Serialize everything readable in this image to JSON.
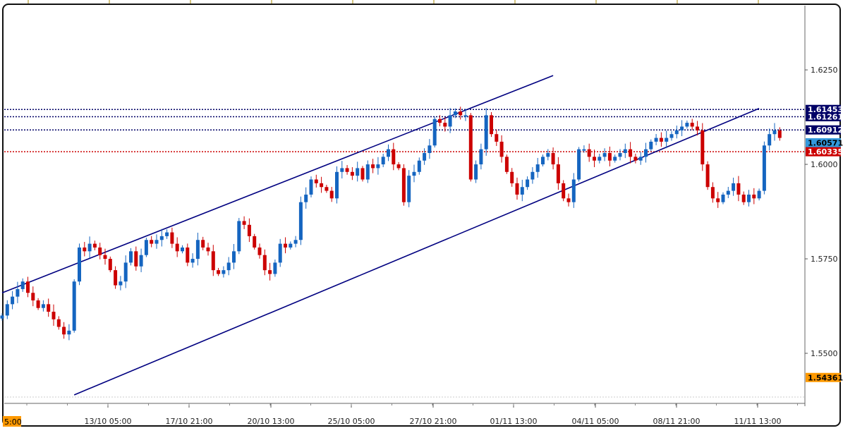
{
  "chart_data": {
    "type": "candlestick",
    "instrument_quote_axis": {
      "ticks": [
        1.55,
        1.575,
        1.6,
        1.625
      ],
      "tick_labels": [
        "1.5500",
        "1.5750",
        "1.6000",
        "1.6250"
      ],
      "ylim": [
        1.5375,
        1.642
      ]
    },
    "x_ticks": [
      "13/10 05:00",
      "17/10 21:00",
      "20/10 13:00",
      "25/10 05:00",
      "27/10 21:00",
      "01/11 13:00",
      "04/11 05:00",
      "08/11 21:00",
      "11/11 13:00"
    ],
    "x_start_label": "5:00",
    "price_levels": [
      {
        "label": "1.61453",
        "value": 1.61453,
        "color": "#000066",
        "style": "dotted"
      },
      {
        "label": "1.61261",
        "value": 1.61261,
        "color": "#000066",
        "style": "dotted"
      },
      {
        "label": "1.60912",
        "value": 1.60912,
        "color": "#000066",
        "style": "dotted"
      },
      {
        "label": "1.60571",
        "value": 1.60571,
        "color": "#3399dd",
        "style": "none"
      },
      {
        "label": "1.60335",
        "value": 1.60335,
        "color": "#cc0000",
        "style": "dotted"
      },
      {
        "label": "1.54361",
        "value": 1.54361,
        "color": "#ff9900",
        "style": "none"
      }
    ],
    "trendlines": [
      {
        "from": [
          0,
          1.566
        ],
        "to": [
          107,
          1.6235
        ]
      },
      {
        "from": [
          14,
          1.539
        ],
        "to": [
          147,
          1.6148
        ]
      }
    ],
    "colors": {
      "up": "#1565c0",
      "down": "#cc0000",
      "trendline": "#000080"
    },
    "closes": [
      1.56,
      1.563,
      1.565,
      1.567,
      1.569,
      1.566,
      1.564,
      1.562,
      1.563,
      1.561,
      1.559,
      1.557,
      1.555,
      1.556,
      1.569,
      1.578,
      1.577,
      1.579,
      1.578,
      1.576,
      1.575,
      1.572,
      1.568,
      1.569,
      1.574,
      1.577,
      1.573,
      1.576,
      1.58,
      1.579,
      1.58,
      1.581,
      1.582,
      1.579,
      1.577,
      1.578,
      1.574,
      1.575,
      1.58,
      1.578,
      1.577,
      1.572,
      1.571,
      1.572,
      1.574,
      1.577,
      1.585,
      1.584,
      1.581,
      1.578,
      1.576,
      1.572,
      1.571,
      1.574,
      1.579,
      1.578,
      1.579,
      1.58,
      1.59,
      1.592,
      1.596,
      1.595,
      1.594,
      1.593,
      1.591,
      1.598,
      1.599,
      1.598,
      1.597,
      1.599,
      1.596,
      1.6,
      1.599,
      1.6,
      1.602,
      1.604,
      1.6,
      1.599,
      1.59,
      1.597,
      1.598,
      1.601,
      1.603,
      1.605,
      1.612,
      1.611,
      1.61,
      1.613,
      1.614,
      1.613,
      1.613,
      1.596,
      1.6,
      1.604,
      1.613,
      1.608,
      1.606,
      1.602,
      1.598,
      1.595,
      1.592,
      1.594,
      1.596,
      1.598,
      1.6,
      1.602,
      1.603,
      1.6,
      1.595,
      1.591,
      1.59,
      1.596,
      1.604,
      1.604,
      1.602,
      1.601,
      1.602,
      1.603,
      1.601,
      1.602,
      1.603,
      1.604,
      1.602,
      1.601,
      1.602,
      1.604,
      1.606,
      1.607,
      1.606,
      1.607,
      1.608,
      1.609,
      1.61,
      1.611,
      1.61,
      1.609,
      1.6,
      1.594,
      1.591,
      1.59,
      1.592,
      1.593,
      1.595,
      1.592,
      1.59,
      1.592,
      1.591,
      1.593,
      1.605,
      1.608,
      1.609,
      1.607
    ]
  }
}
